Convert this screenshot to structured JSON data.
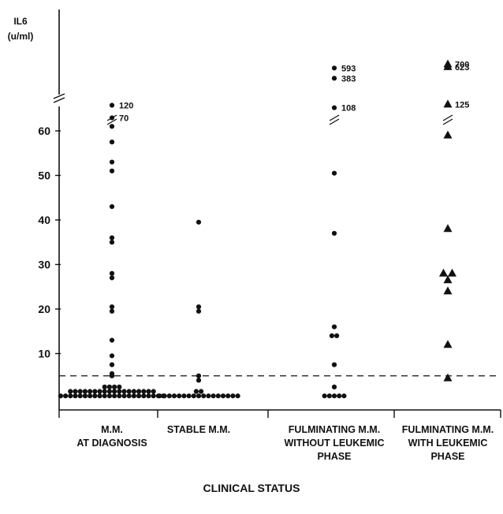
{
  "chart_data": {
    "type": "scatter",
    "ylabel_lines": [
      "IL6",
      "(u/ml)"
    ],
    "xlabel": "CLINICAL STATUS",
    "ylim": [
      0,
      60
    ],
    "y_ticks": [
      "10",
      "20",
      "30",
      "40",
      "50",
      "60"
    ],
    "reference_line": 5,
    "axis_break": true,
    "colors": {
      "points": "#111111",
      "axis": "#111111"
    },
    "groups": [
      {
        "label_lines": [
          "M.M.",
          "AT DIAGNOSIS"
        ],
        "marker": "circle",
        "values": [
          0.5,
          0.5,
          0.5,
          0.5,
          0.5,
          0.5,
          0.5,
          0.5,
          0.5,
          0.5,
          0.5,
          0.5,
          0.5,
          0.5,
          0.5,
          0.5,
          0.5,
          0.5,
          0.5,
          0.5,
          0.5,
          0.5,
          1.5,
          1.5,
          1.5,
          1.5,
          1.5,
          1.5,
          1.5,
          1.5,
          1.5,
          1.5,
          1.5,
          1.5,
          1.5,
          1.5,
          1.5,
          1.5,
          1.5,
          1.5,
          2.5,
          2.5,
          2.5,
          2.5,
          5,
          5.5,
          7.5,
          9.5,
          13,
          19.5,
          20.5,
          27,
          28,
          35,
          36,
          43,
          51,
          53,
          57.5,
          61
        ],
        "high_values": [
          70,
          120
        ],
        "high_labels": [
          "70",
          "120"
        ]
      },
      {
        "label_lines": [
          "STABLE M.M."
        ],
        "marker": "circle",
        "values": [
          0.5,
          0.5,
          0.5,
          0.5,
          0.5,
          0.5,
          0.5,
          0.5,
          0.5,
          0.5,
          0.5,
          0.5,
          0.5,
          0.5,
          0.5,
          0.5,
          0.5,
          1.5,
          1.5,
          4,
          5,
          19.5,
          20.5,
          39.5
        ],
        "high_values": [],
        "high_labels": []
      },
      {
        "label_lines": [
          "FULMINATING M.M.",
          "WITHOUT LEUKEMIC",
          "PHASE"
        ],
        "marker": "circle",
        "values": [
          0.5,
          0.5,
          0.5,
          0.5,
          0.5,
          2.5,
          7.5,
          14,
          14,
          16,
          37,
          50.5
        ],
        "high_values": [
          108,
          383,
          593
        ],
        "high_labels": [
          "108",
          "383",
          "593"
        ]
      },
      {
        "label_lines": [
          "FULMINATING M.M.",
          "WITH LEUKEMIC",
          "PHASE"
        ],
        "marker": "triangle",
        "values": [
          4.5,
          12,
          24,
          26.5,
          28,
          28,
          38,
          59
        ],
        "high_values": [
          125,
          623,
          700
        ],
        "high_labels": [
          "125",
          "623",
          "700"
        ]
      }
    ]
  }
}
